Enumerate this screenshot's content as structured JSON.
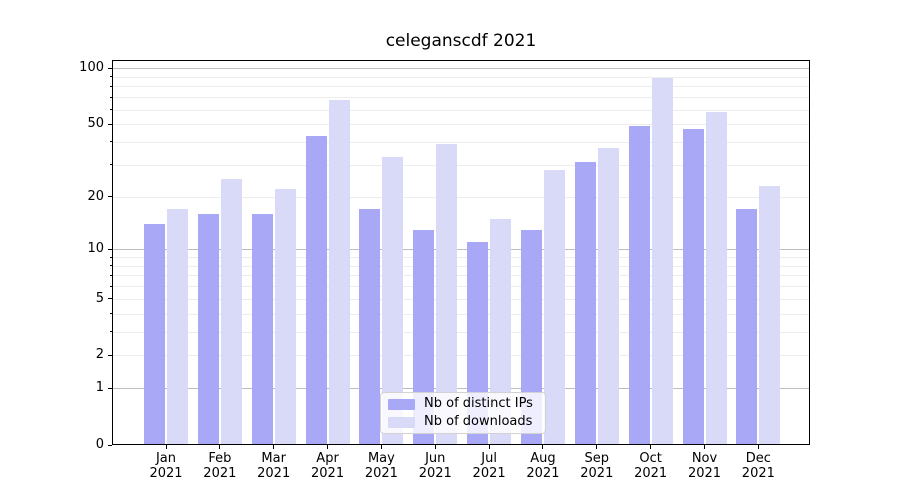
{
  "figure": {
    "title": "celeganscdf 2021"
  },
  "chart_data": {
    "type": "bar",
    "title": "celeganscdf 2021",
    "categories": [
      "Jan 2021",
      "Feb 2021",
      "Mar 2021",
      "Apr 2021",
      "May 2021",
      "Jun 2021",
      "Jul 2021",
      "Aug 2021",
      "Sep 2021",
      "Oct 2021",
      "Nov 2021",
      "Dec 2021"
    ],
    "series": [
      {
        "name": "Nb of distinct IPs",
        "color": "#a8a8f7",
        "values": [
          14,
          16,
          16,
          43,
          17,
          13,
          11,
          13,
          31,
          49,
          47,
          17
        ]
      },
      {
        "name": "Nb of downloads",
        "color": "#d9d9f8",
        "values": [
          17,
          25,
          22,
          68,
          33,
          39,
          15,
          28,
          37,
          89,
          58,
          23
        ]
      }
    ],
    "xlabel": "",
    "ylabel": "",
    "y_scale": "log1p",
    "y_axis": {
      "ylim": [
        0,
        111
      ],
      "tick_values": [
        0,
        1,
        2,
        5,
        10,
        20,
        50,
        100
      ],
      "tick_labels": [
        "0",
        "1",
        "2",
        "5",
        "10",
        "20",
        "50",
        "100"
      ],
      "major_grid_values": [
        1,
        10,
        100
      ],
      "minor_grid_values": [
        2,
        3,
        4,
        5,
        6,
        7,
        8,
        9,
        20,
        30,
        40,
        50,
        60,
        70,
        80,
        90
      ],
      "minor_tick_values": [
        3,
        4,
        6,
        7,
        8,
        9,
        30,
        40,
        60,
        70,
        80,
        90
      ]
    },
    "grid": true,
    "legend_position": "lower center"
  },
  "colors": {
    "background": "#ffffff",
    "spine": "#000000",
    "major_grid": "#bdbdbd",
    "minor_grid": "#ededed",
    "text": "#000000",
    "legend_border": "#d2d2d2"
  }
}
